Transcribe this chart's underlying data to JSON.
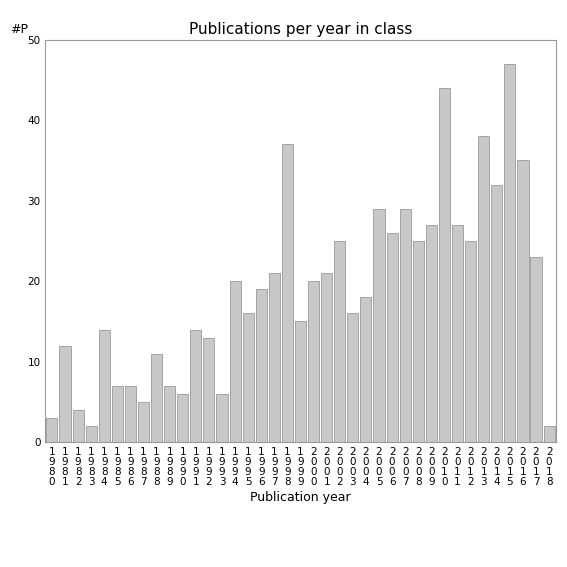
{
  "title": "Publications per year in class",
  "xlabel": "Publication year",
  "ylabel": "#P",
  "years": [
    "1980",
    "1981",
    "1982",
    "1983",
    "1984",
    "1985",
    "1986",
    "1987",
    "1988",
    "1989",
    "1990",
    "1991",
    "1992",
    "1993",
    "1994",
    "1995",
    "1996",
    "1997",
    "1998",
    "1999",
    "2000",
    "2001",
    "2002",
    "2003",
    "2004",
    "2005",
    "2006",
    "2007",
    "2008",
    "2009",
    "2010",
    "2011",
    "2012",
    "2013",
    "2014",
    "2015",
    "2016",
    "2017",
    "2018"
  ],
  "values": [
    3,
    12,
    4,
    2,
    14,
    7,
    7,
    5,
    11,
    7,
    6,
    14,
    13,
    6,
    20,
    16,
    19,
    21,
    37,
    15,
    20,
    21,
    25,
    16,
    18,
    29,
    26,
    29,
    25,
    27,
    44,
    27,
    25,
    38,
    32,
    47,
    35,
    23,
    2
  ],
  "bar_color": "#c8c8c8",
  "bar_edgecolor": "#999999",
  "ylim": [
    0,
    50
  ],
  "yticks": [
    0,
    10,
    20,
    30,
    40,
    50
  ],
  "bg_color": "#ffffff",
  "title_fontsize": 11,
  "label_fontsize": 9,
  "tick_fontsize": 7.5
}
